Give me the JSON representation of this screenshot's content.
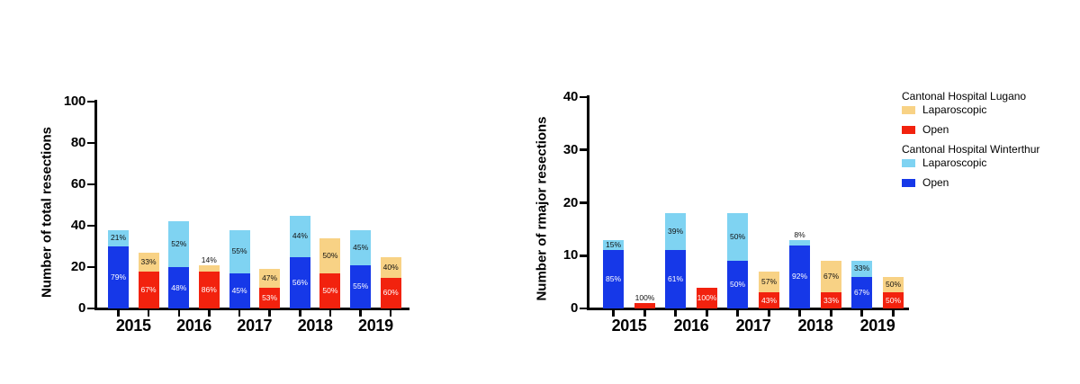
{
  "page": {
    "background": "#ffffff"
  },
  "colors": {
    "lugano_laparoscopic": "#F8D285",
    "lugano_open": "#F2220E",
    "winterthur_laparoscopic": "#7FD3F2",
    "winterthur_open": "#1638E8",
    "axis": "#000000",
    "label_on_dark": "#FFFFFF",
    "label_on_light": "#111111"
  },
  "legend": {
    "position": "right",
    "sections": [
      {
        "title": "Cantonal Hospital Lugano",
        "items": [
          {
            "label": "Laparoscopic",
            "series": "lugano_laparoscopic"
          },
          {
            "label": "Open",
            "series": "lugano_open"
          }
        ]
      },
      {
        "title": "Cantonal Hospital Winterthur",
        "items": [
          {
            "label": "Laparoscopic",
            "series": "winterthur_laparoscopic"
          },
          {
            "label": "Open",
            "series": "winterthur_open"
          }
        ]
      }
    ]
  },
  "chart_data": [
    {
      "type": "bar",
      "subtype": "stacked-grouped",
      "title": "",
      "xlabel": "",
      "ylabel": "Number of total resections",
      "ylim": [
        0,
        100
      ],
      "yticks": [
        0,
        20,
        40,
        60,
        80,
        100
      ],
      "grid": false,
      "categories": [
        "2015",
        "2016",
        "2017",
        "2018",
        "2019"
      ],
      "bars": [
        {
          "category": "2015",
          "hospital": "Winterthur",
          "open": 30,
          "open_label": "79%",
          "laparoscopic": 8,
          "laparoscopic_label": "21%"
        },
        {
          "category": "2015",
          "hospital": "Lugano",
          "open": 18,
          "open_label": "67%",
          "laparoscopic": 9,
          "laparoscopic_label": "33%"
        },
        {
          "category": "2016",
          "hospital": "Winterthur",
          "open": 20,
          "open_label": "48%",
          "laparoscopic": 22,
          "laparoscopic_label": "52%"
        },
        {
          "category": "2016",
          "hospital": "Lugano",
          "open": 18,
          "open_label": "86%",
          "laparoscopic": 3,
          "laparoscopic_label": "14%"
        },
        {
          "category": "2017",
          "hospital": "Winterthur",
          "open": 17,
          "open_label": "45%",
          "laparoscopic": 21,
          "laparoscopic_label": "55%"
        },
        {
          "category": "2017",
          "hospital": "Lugano",
          "open": 10,
          "open_label": "53%",
          "laparoscopic": 9,
          "laparoscopic_label": "47%"
        },
        {
          "category": "2018",
          "hospital": "Winterthur",
          "open": 25,
          "open_label": "56%",
          "laparoscopic": 20,
          "laparoscopic_label": "44%"
        },
        {
          "category": "2018",
          "hospital": "Lugano",
          "open": 17,
          "open_label": "50%",
          "laparoscopic": 17,
          "laparoscopic_label": "50%"
        },
        {
          "category": "2019",
          "hospital": "Winterthur",
          "open": 21,
          "open_label": "55%",
          "laparoscopic": 17,
          "laparoscopic_label": "45%"
        },
        {
          "category": "2019",
          "hospital": "Lugano",
          "open": 15,
          "open_label": "60%",
          "laparoscopic": 10,
          "laparoscopic_label": "40%"
        }
      ]
    },
    {
      "type": "bar",
      "subtype": "stacked-grouped",
      "title": "",
      "xlabel": "",
      "ylabel": "Number of rmajor resections",
      "ylim": [
        0,
        40
      ],
      "yticks": [
        0,
        10,
        20,
        30,
        40
      ],
      "grid": false,
      "categories": [
        "2015",
        "2016",
        "2017",
        "2018",
        "2019"
      ],
      "bars": [
        {
          "category": "2015",
          "hospital": "Winterthur",
          "open": 11,
          "open_label": "85%",
          "laparoscopic": 2,
          "laparoscopic_label": "15%"
        },
        {
          "category": "2015",
          "hospital": "Lugano",
          "open": 1,
          "open_label": "100%",
          "laparoscopic": 0,
          "laparoscopic_label": ""
        },
        {
          "category": "2016",
          "hospital": "Winterthur",
          "open": 11,
          "open_label": "61%",
          "laparoscopic": 7,
          "laparoscopic_label": "39%"
        },
        {
          "category": "2016",
          "hospital": "Lugano",
          "open": 4,
          "open_label": "100%",
          "laparoscopic": 0,
          "laparoscopic_label": ""
        },
        {
          "category": "2017",
          "hospital": "Winterthur",
          "open": 9,
          "open_label": "50%",
          "laparoscopic": 9,
          "laparoscopic_label": "50%"
        },
        {
          "category": "2017",
          "hospital": "Lugano",
          "open": 3,
          "open_label": "43%",
          "laparoscopic": 4,
          "laparoscopic_label": "57%"
        },
        {
          "category": "2018",
          "hospital": "Winterthur",
          "open": 12,
          "open_label": "92%",
          "laparoscopic": 1,
          "laparoscopic_label": "8%"
        },
        {
          "category": "2018",
          "hospital": "Lugano",
          "open": 3,
          "open_label": "33%",
          "laparoscopic": 6,
          "laparoscopic_label": "67%"
        },
        {
          "category": "2019",
          "hospital": "Winterthur",
          "open": 6,
          "open_label": "67%",
          "laparoscopic": 3,
          "laparoscopic_label": "33%"
        },
        {
          "category": "2019",
          "hospital": "Lugano",
          "open": 3,
          "open_label": "50%",
          "laparoscopic": 3,
          "laparoscopic_label": "50%"
        }
      ]
    }
  ]
}
